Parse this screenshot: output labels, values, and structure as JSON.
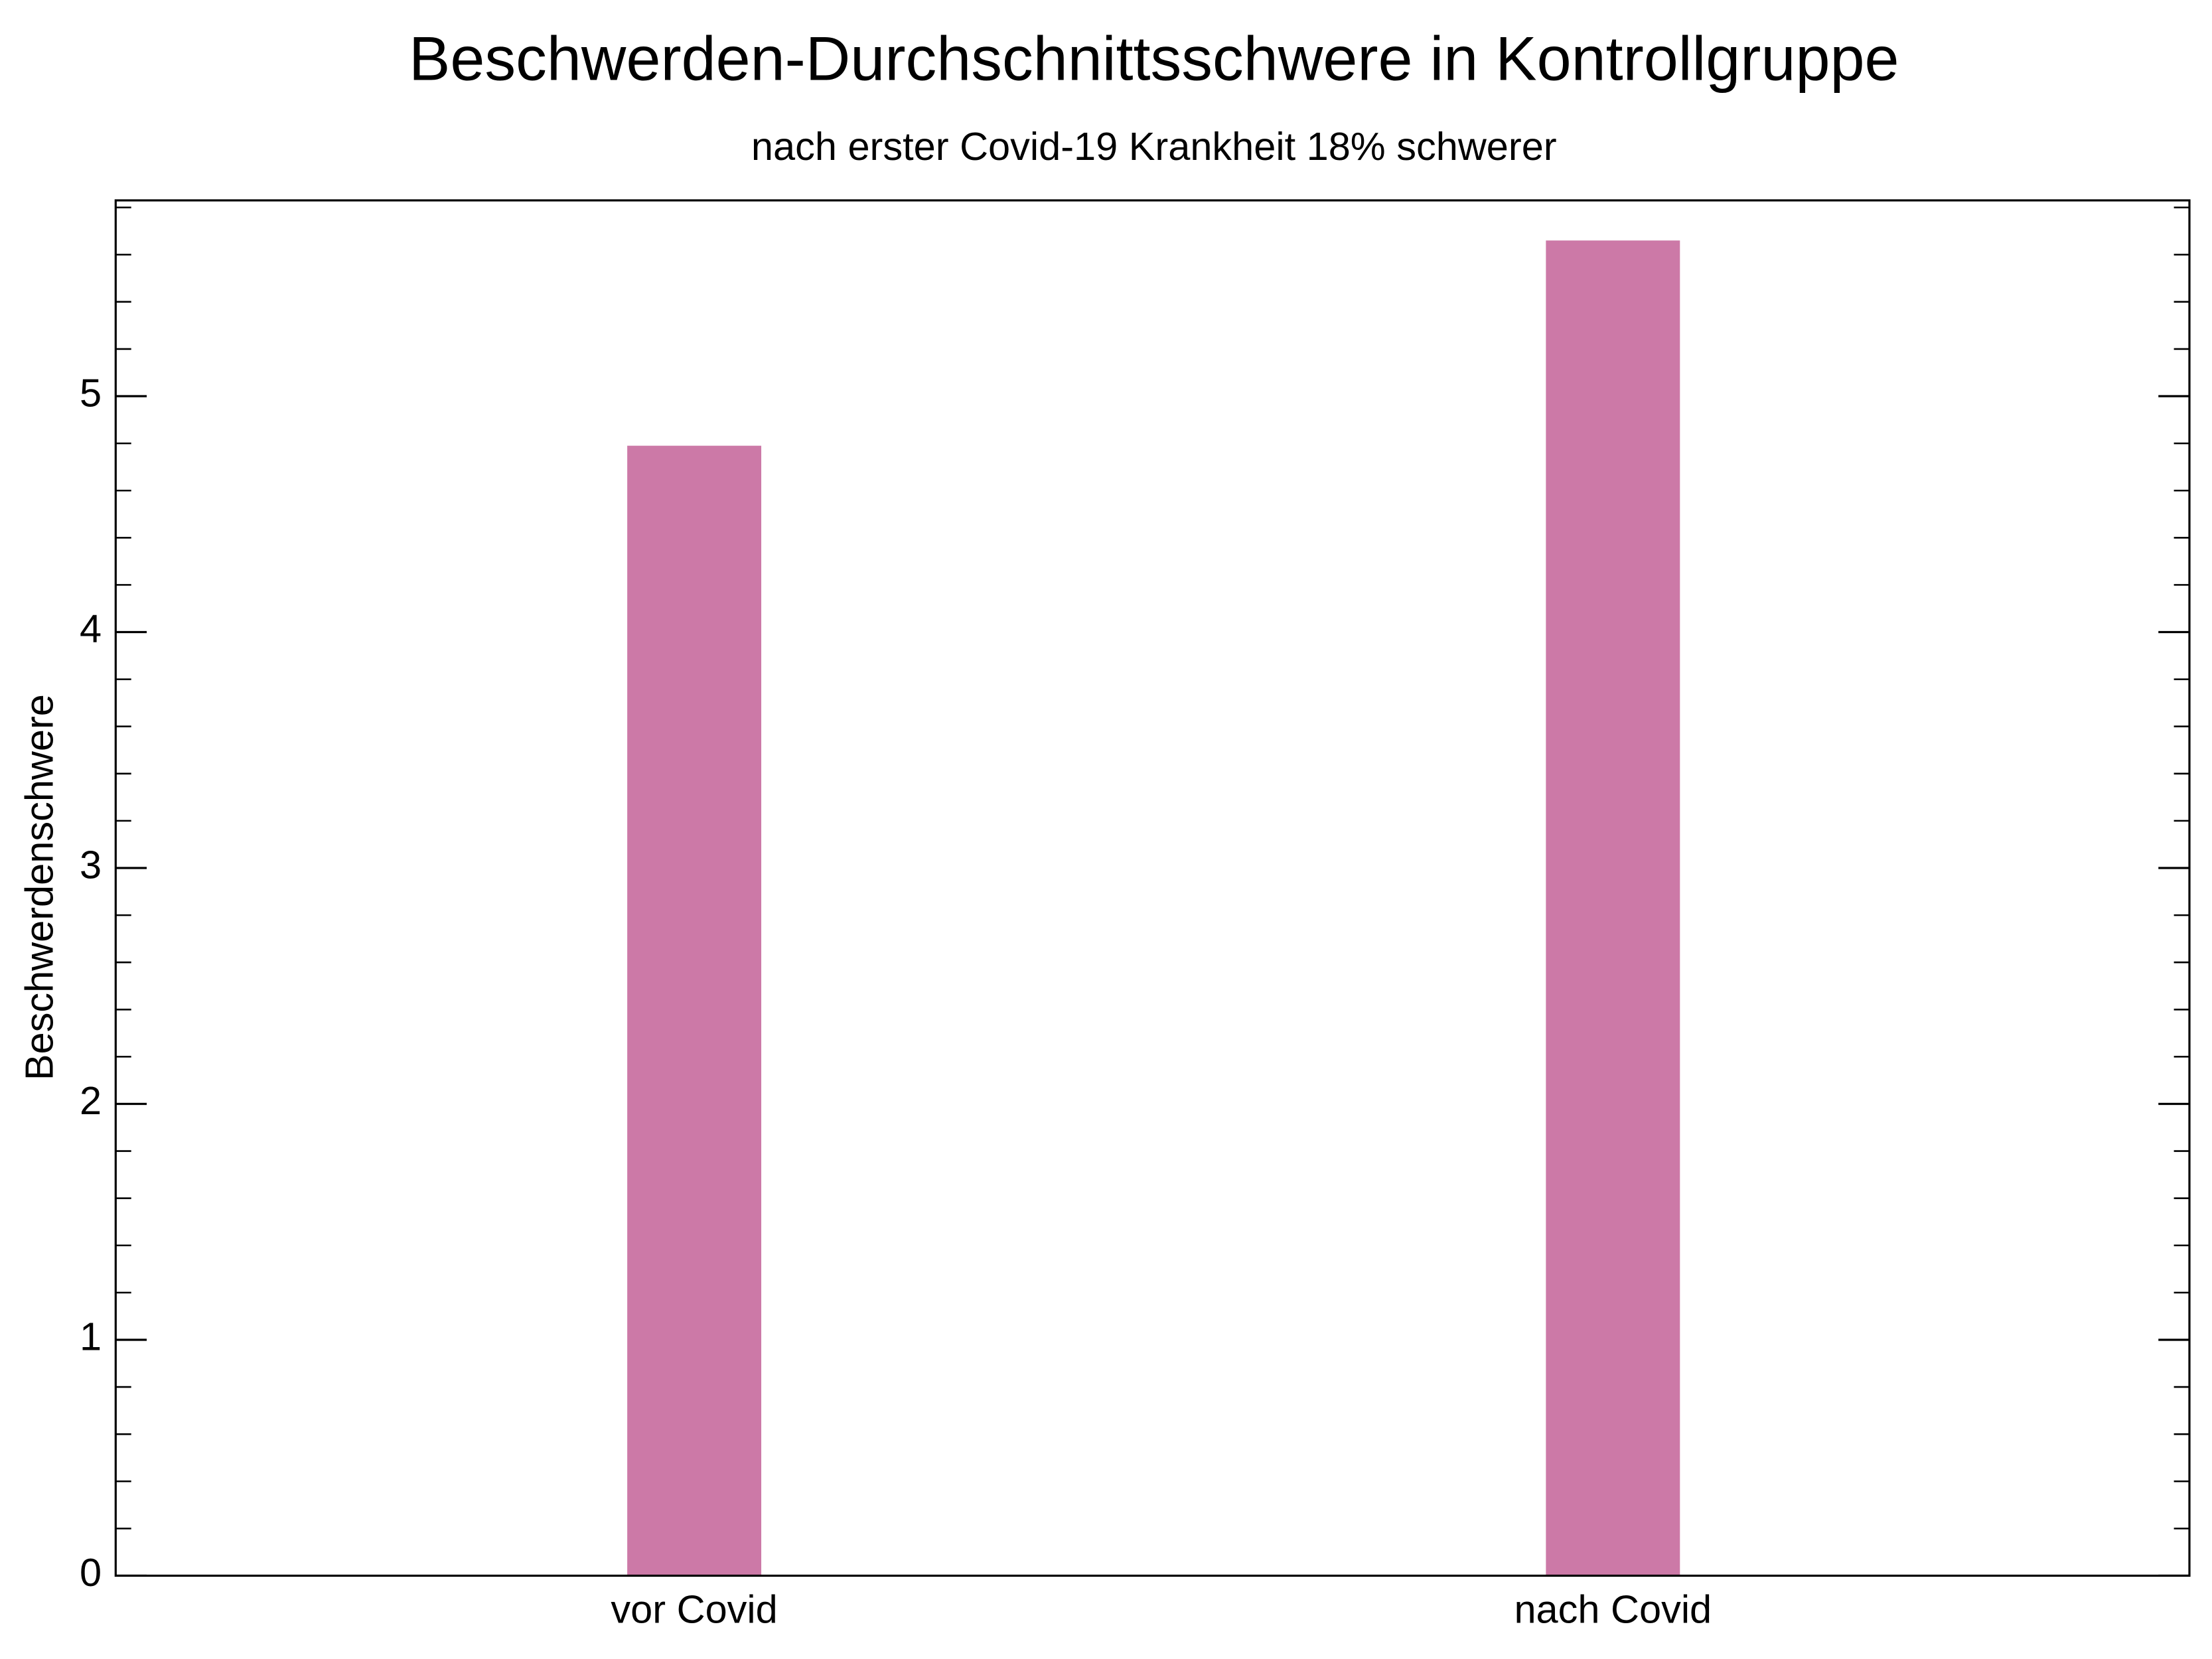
{
  "chart_data": {
    "type": "bar",
    "title": "Beschwerden-Durchschnittsschwere in Kontrollgruppe",
    "subtitle": "nach erster Covid-19 Krankheit 18% schwerer",
    "y_label": "Beschwerdenschwere",
    "categories": [
      "vor Covid",
      "nach Covid"
    ],
    "values": [
      4.79,
      5.66
    ],
    "color": "#cc79a7",
    "ylim": [
      0,
      5.83
    ],
    "yticks": [
      0,
      1,
      2,
      3,
      4,
      5
    ]
  }
}
